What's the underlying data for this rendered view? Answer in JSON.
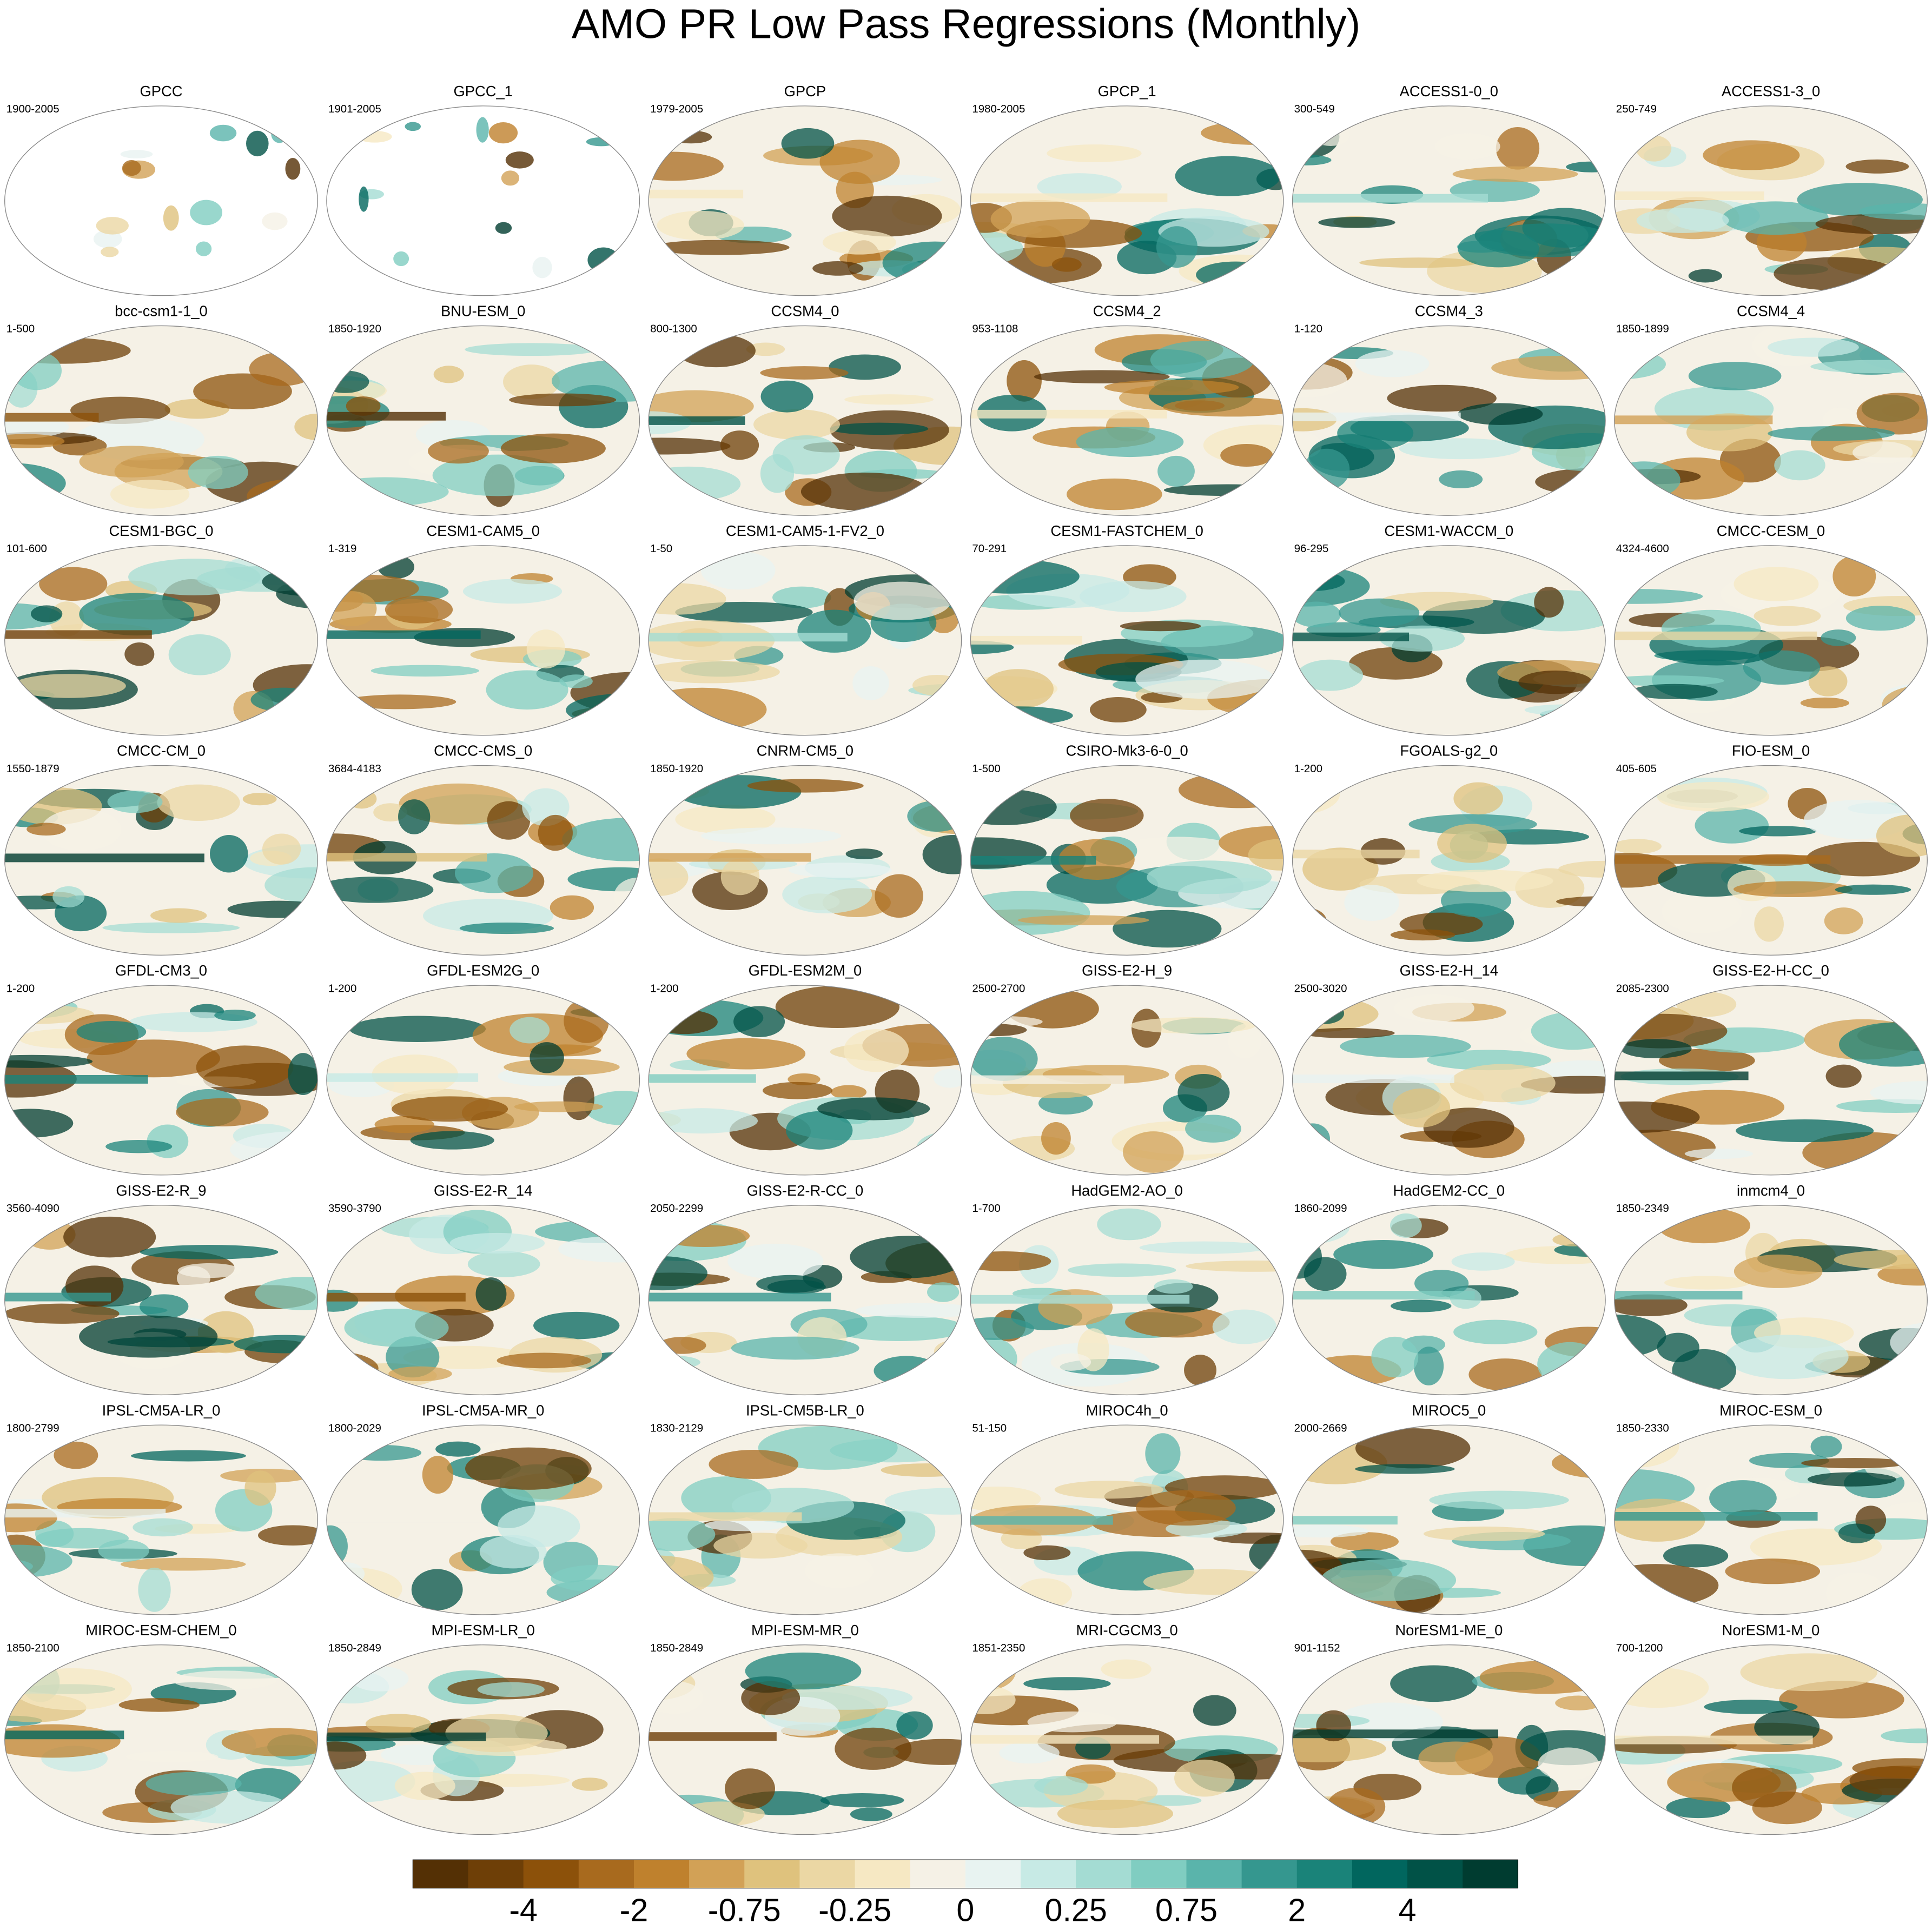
{
  "chart_data": {
    "type": "map-panels",
    "title": "AMO PR Low Pass Regressions (Monthly)",
    "panels": [
      {
        "name": "GPCC",
        "years": "1900-2005"
      },
      {
        "name": "GPCC_1",
        "years": "1901-2005"
      },
      {
        "name": "GPCP",
        "years": "1979-2005"
      },
      {
        "name": "GPCP_1",
        "years": "1980-2005"
      },
      {
        "name": "ACCESS1-0_0",
        "years": "300-549"
      },
      {
        "name": "ACCESS1-3_0",
        "years": "250-749"
      },
      {
        "name": "bcc-csm1-1_0",
        "years": "1-500"
      },
      {
        "name": "BNU-ESM_0",
        "years": "1850-1920"
      },
      {
        "name": "CCSM4_0",
        "years": "800-1300"
      },
      {
        "name": "CCSM4_2",
        "years": "953-1108"
      },
      {
        "name": "CCSM4_3",
        "years": "1-120"
      },
      {
        "name": "CCSM4_4",
        "years": "1850-1899"
      },
      {
        "name": "CESM1-BGC_0",
        "years": "101-600"
      },
      {
        "name": "CESM1-CAM5_0",
        "years": "1-319"
      },
      {
        "name": "CESM1-CAM5-1-FV2_0",
        "years": "1-50"
      },
      {
        "name": "CESM1-FASTCHEM_0",
        "years": "70-291"
      },
      {
        "name": "CESM1-WACCM_0",
        "years": "96-295"
      },
      {
        "name": "CMCC-CESM_0",
        "years": "4324-4600"
      },
      {
        "name": "CMCC-CM_0",
        "years": "1550-1879"
      },
      {
        "name": "CMCC-CMS_0",
        "years": "3684-4183"
      },
      {
        "name": "CNRM-CM5_0",
        "years": "1850-1920"
      },
      {
        "name": "CSIRO-Mk3-6-0_0",
        "years": "1-500"
      },
      {
        "name": "FGOALS-g2_0",
        "years": "1-200"
      },
      {
        "name": "FIO-ESM_0",
        "years": "405-605"
      },
      {
        "name": "GFDL-CM3_0",
        "years": "1-200"
      },
      {
        "name": "GFDL-ESM2G_0",
        "years": "1-200"
      },
      {
        "name": "GFDL-ESM2M_0",
        "years": "1-200"
      },
      {
        "name": "GISS-E2-H_9",
        "years": "2500-2700"
      },
      {
        "name": "GISS-E2-H_14",
        "years": "2500-3020"
      },
      {
        "name": "GISS-E2-H-CC_0",
        "years": "2085-2300"
      },
      {
        "name": "GISS-E2-R_9",
        "years": "3560-4090"
      },
      {
        "name": "GISS-E2-R_14",
        "years": "3590-3790"
      },
      {
        "name": "GISS-E2-R-CC_0",
        "years": "2050-2299"
      },
      {
        "name": "HadGEM2-AO_0",
        "years": "1-700"
      },
      {
        "name": "HadGEM2-CC_0",
        "years": "1860-2099"
      },
      {
        "name": "inmcm4_0",
        "years": "1850-2349"
      },
      {
        "name": "IPSL-CM5A-LR_0",
        "years": "1800-2799"
      },
      {
        "name": "IPSL-CM5A-MR_0",
        "years": "1800-2029"
      },
      {
        "name": "IPSL-CM5B-LR_0",
        "years": "1830-2129"
      },
      {
        "name": "MIROC4h_0",
        "years": "51-150"
      },
      {
        "name": "MIROC5_0",
        "years": "2000-2669"
      },
      {
        "name": "MIROC-ESM_0",
        "years": "1850-2330"
      },
      {
        "name": "MIROC-ESM-CHEM_0",
        "years": "1850-2100"
      },
      {
        "name": "MPI-ESM-LR_0",
        "years": "1850-2849"
      },
      {
        "name": "MPI-ESM-MR_0",
        "years": "1850-2849"
      },
      {
        "name": "MRI-CGCM3_0",
        "years": "1851-2350"
      },
      {
        "name": "NorESM1-ME_0",
        "years": "901-1152"
      },
      {
        "name": "NorESM1-M_0",
        "years": "700-1200"
      }
    ],
    "colorbar": {
      "colors": [
        "#543005",
        "#6e3f07",
        "#8c510a",
        "#a86a1e",
        "#bf812d",
        "#d2a156",
        "#dfc27d",
        "#ebd7a4",
        "#f6e8c3",
        "#f5f1e6",
        "#e8f3f1",
        "#c7eae5",
        "#a4dcd3",
        "#80cdc1",
        "#5ab4ab",
        "#35978f",
        "#1a8379",
        "#01665e",
        "#015247",
        "#003c30"
      ],
      "ticks": [
        -4,
        -2,
        -0.75,
        -0.25,
        0,
        0.25,
        0.75,
        2,
        4
      ]
    }
  }
}
